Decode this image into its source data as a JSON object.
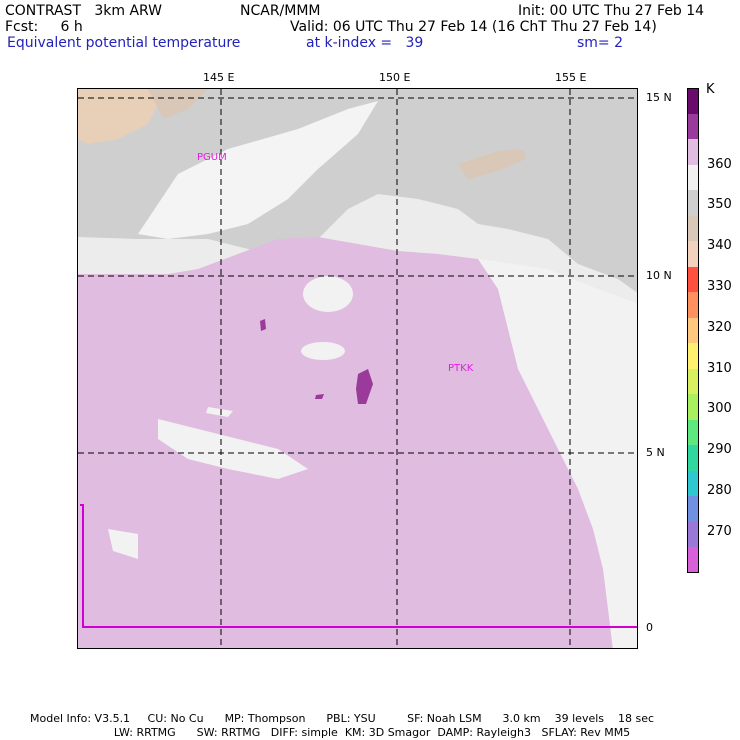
{
  "header": {
    "model": "CONTRAST   3km ARW",
    "fcst": "Fcst:     6 h",
    "center": "NCAR/MMM",
    "init": "Init: 00 UTC Thu 27 Feb 14",
    "valid": "Valid: 06 UTC Thu 27 Feb 14 (16 ChT Thu 27 Feb 14)",
    "field": "Equivalent potential temperature",
    "kindex": "at k-index =   39",
    "sm": "sm= 2"
  },
  "map": {
    "lon_labels": [
      "145 E",
      "150 E",
      "155 E"
    ],
    "lat_labels": [
      "15 N",
      "10 N",
      "5 N",
      "0"
    ],
    "stations": [
      "PGUM",
      "PTKK"
    ]
  },
  "colorbar": {
    "unit": "K",
    "labels": [
      "360",
      "350",
      "340",
      "330",
      "320",
      "310",
      "300",
      "290",
      "280",
      "270"
    ],
    "colors": [
      "#6a0a6a",
      "#9a3a9a",
      "#e0bce0",
      "#f0f0f0",
      "#cfcfcf",
      "#d9c8b8",
      "#f2d2bc",
      "#ff5040",
      "#ff9060",
      "#ffc880",
      "#fff070",
      "#d8f060",
      "#a8f060",
      "#60e880",
      "#30d8a0",
      "#30c8d0",
      "#7090e0",
      "#9a78d8",
      "#d860d8"
    ]
  },
  "footer": {
    "line1": "Model Info: V3.5.1     CU: No Cu      MP: Thompson      PBL: YSU         SF: Noah LSM      3.0 km    39 levels    18 sec",
    "line2": "                        LW: RRTMG      SW: RRTMG   DIFF: simple  KM: 3D Smagor  DAMP: Rayleigh3   SFLAY: Rev MM5"
  }
}
